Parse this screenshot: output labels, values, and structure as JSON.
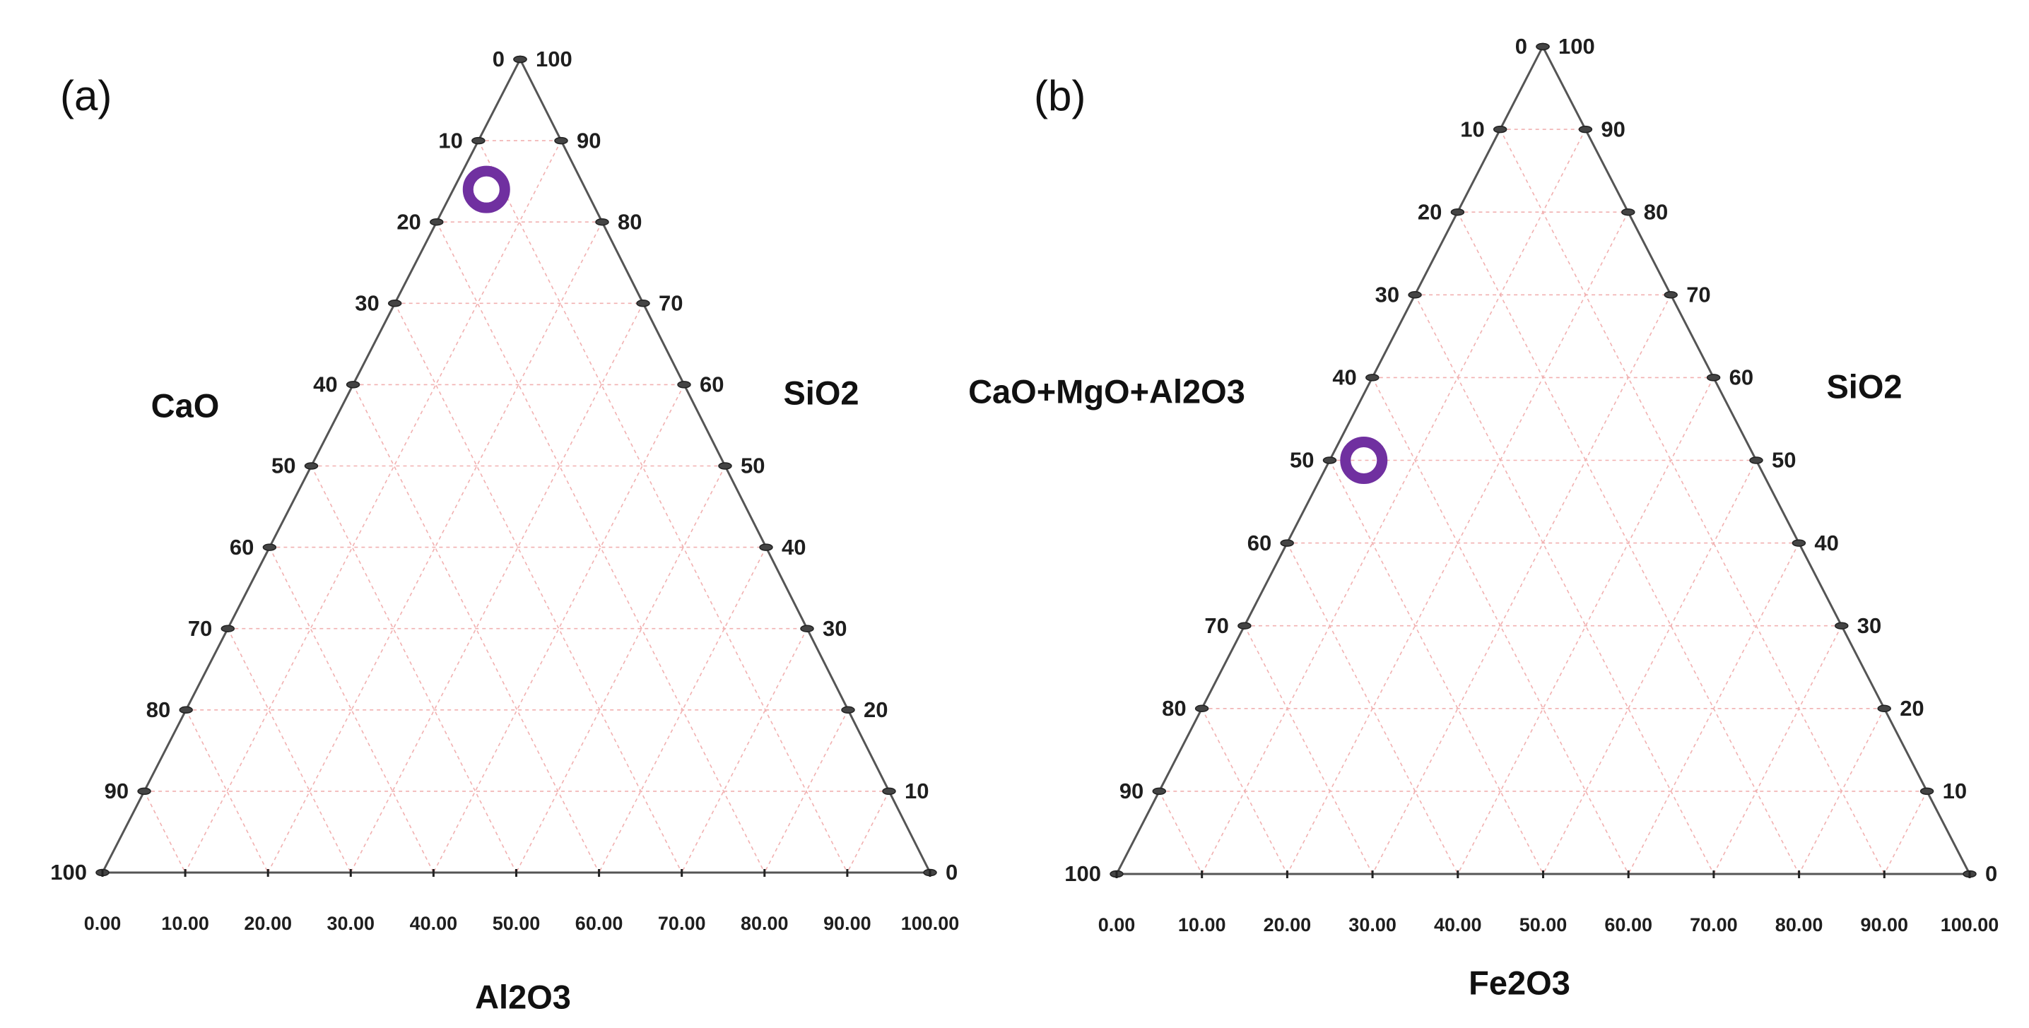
{
  "chart_data": [
    {
      "type": "scatter",
      "subtype": "ternary",
      "panel_label": "(a)",
      "axes": {
        "left": {
          "label": "CaO",
          "ticks": [
            "0",
            "10",
            "20",
            "30",
            "40",
            "50",
            "60",
            "70",
            "80",
            "90",
            "100"
          ]
        },
        "right": {
          "label": "SiO2",
          "ticks": [
            "100",
            "90",
            "80",
            "70",
            "60",
            "50",
            "40",
            "30",
            "20",
            "10",
            "0"
          ]
        },
        "bottom": {
          "label": "Al2O3",
          "ticks": [
            "0.00",
            "10.00",
            "20.00",
            "30.00",
            "40.00",
            "50.00",
            "60.00",
            "70.00",
            "80.00",
            "90.00",
            "100.00"
          ]
        }
      },
      "range": [
        0,
        100
      ],
      "grid": true,
      "points": [
        {
          "SiO2": 84,
          "CaO": 12,
          "Al2O3": 4,
          "color": "#7030a0",
          "marker": "ring"
        }
      ]
    },
    {
      "type": "scatter",
      "subtype": "ternary",
      "panel_label": "(b)",
      "axes": {
        "left": {
          "label": "CaO+MgO+Al2O3",
          "ticks": [
            "0",
            "10",
            "20",
            "30",
            "40",
            "50",
            "60",
            "70",
            "80",
            "90",
            "100"
          ]
        },
        "right": {
          "label": "SiO2",
          "ticks": [
            "100",
            "90",
            "80",
            "70",
            "60",
            "50",
            "40",
            "30",
            "20",
            "10",
            "0"
          ]
        },
        "bottom": {
          "label": "Fe2O3",
          "ticks": [
            "0.00",
            "10.00",
            "20.00",
            "30.00",
            "40.00",
            "50.00",
            "60.00",
            "70.00",
            "80.00",
            "90.00",
            "100.00"
          ]
        }
      },
      "range": [
        0,
        100
      ],
      "grid": true,
      "points": [
        {
          "SiO2": 50,
          "CaO+MgO+Al2O3": 46,
          "Fe2O3": 4,
          "color": "#7030a0",
          "marker": "ring"
        }
      ]
    }
  ]
}
